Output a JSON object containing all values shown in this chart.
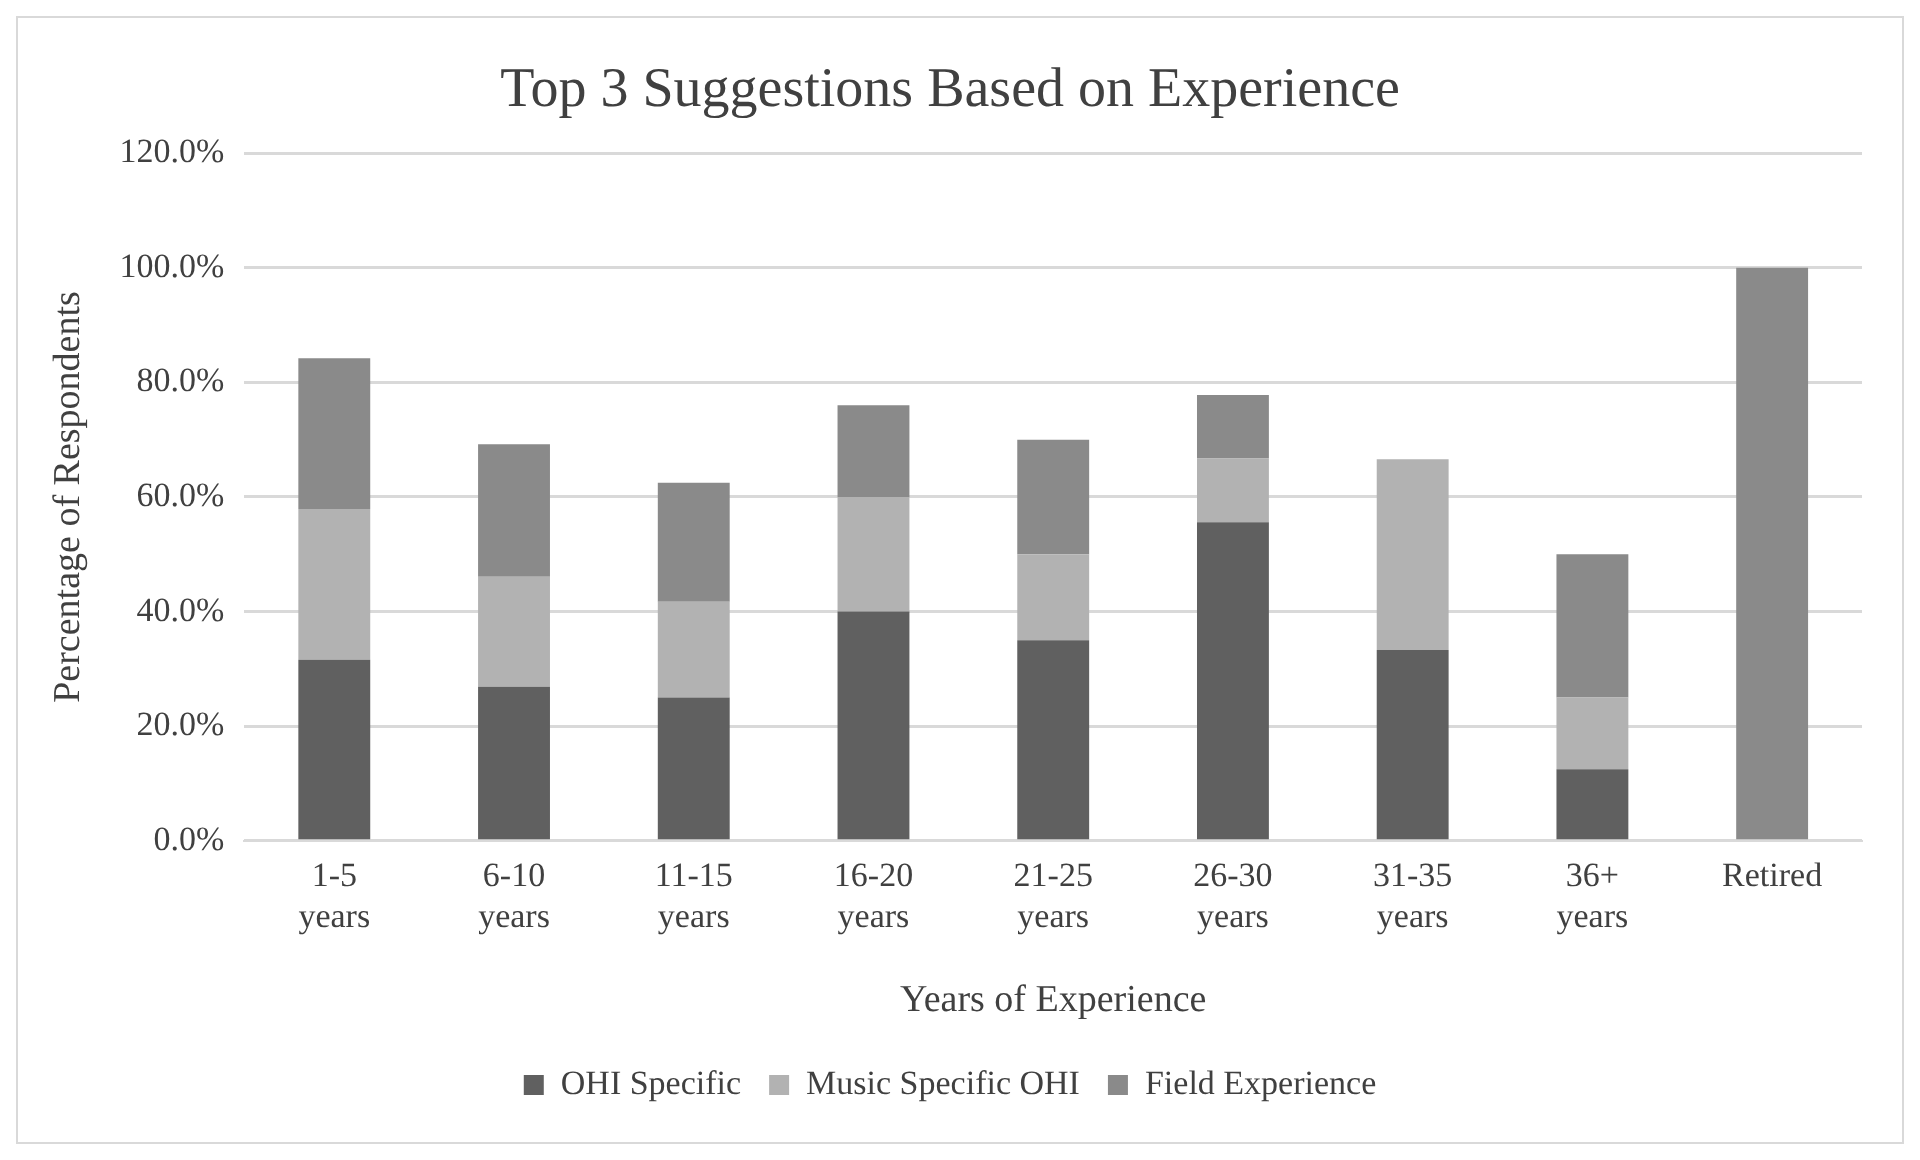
{
  "chart_data": {
    "type": "bar",
    "title": "Top 3 Suggestions Based on Experience",
    "xlabel": "Years of Experience",
    "ylabel": "Percentage of Respondents",
    "categories": [
      "1-5 years",
      "6-10 years",
      "11-15 years",
      "16-20 years",
      "21-25 years",
      "26-30 years",
      "31-35 years",
      "36+ years",
      "Retired"
    ],
    "series": [
      {
        "name": "OHI Specific",
        "color": "#606060",
        "values": [
          31.6,
          26.9,
          25,
          40,
          35,
          55.6,
          33.3,
          12.5,
          0
        ]
      },
      {
        "name": "Music Specific OHI",
        "color": "#b2b2b2",
        "values": [
          26.3,
          19.2,
          16.7,
          20,
          15,
          11.1,
          33.3,
          12.5,
          0
        ]
      },
      {
        "name": "Field Experience",
        "color": "#8a8a8a",
        "values": [
          26.3,
          23.1,
          20.8,
          16,
          20,
          11.1,
          0,
          25,
          100
        ]
      }
    ],
    "stacked": true,
    "ylim": [
      0,
      120
    ],
    "yticks": [
      {
        "value": 0,
        "label": "0.0%"
      },
      {
        "value": 20,
        "label": "20.0%"
      },
      {
        "value": 40,
        "label": "40.0%"
      },
      {
        "value": 60,
        "label": "60.0%"
      },
      {
        "value": 80,
        "label": "80.0%"
      },
      {
        "value": 100,
        "label": "100.0%"
      },
      {
        "value": 120,
        "label": "120.0%"
      }
    ],
    "grid": "y",
    "legend": "bottom"
  }
}
